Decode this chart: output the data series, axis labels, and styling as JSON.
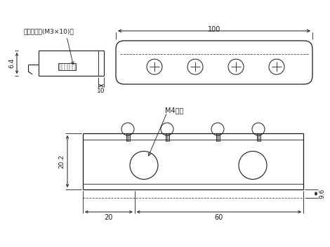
{
  "bg_color": "#ffffff",
  "line_color": "#1a1a1a",
  "dashed_color": "#444444",
  "text_color": "#1a1a1a",
  "fig_width": 4.7,
  "fig_height": 3.52,
  "label_note": "なべ小ネジ(M3×10)付",
  "label_64": "6.4",
  "label_10": "10",
  "label_100": "100",
  "label_202": "20.2",
  "label_96": "9.6",
  "label_20": "20",
  "label_60": "60",
  "label_m4": "M4サラ"
}
